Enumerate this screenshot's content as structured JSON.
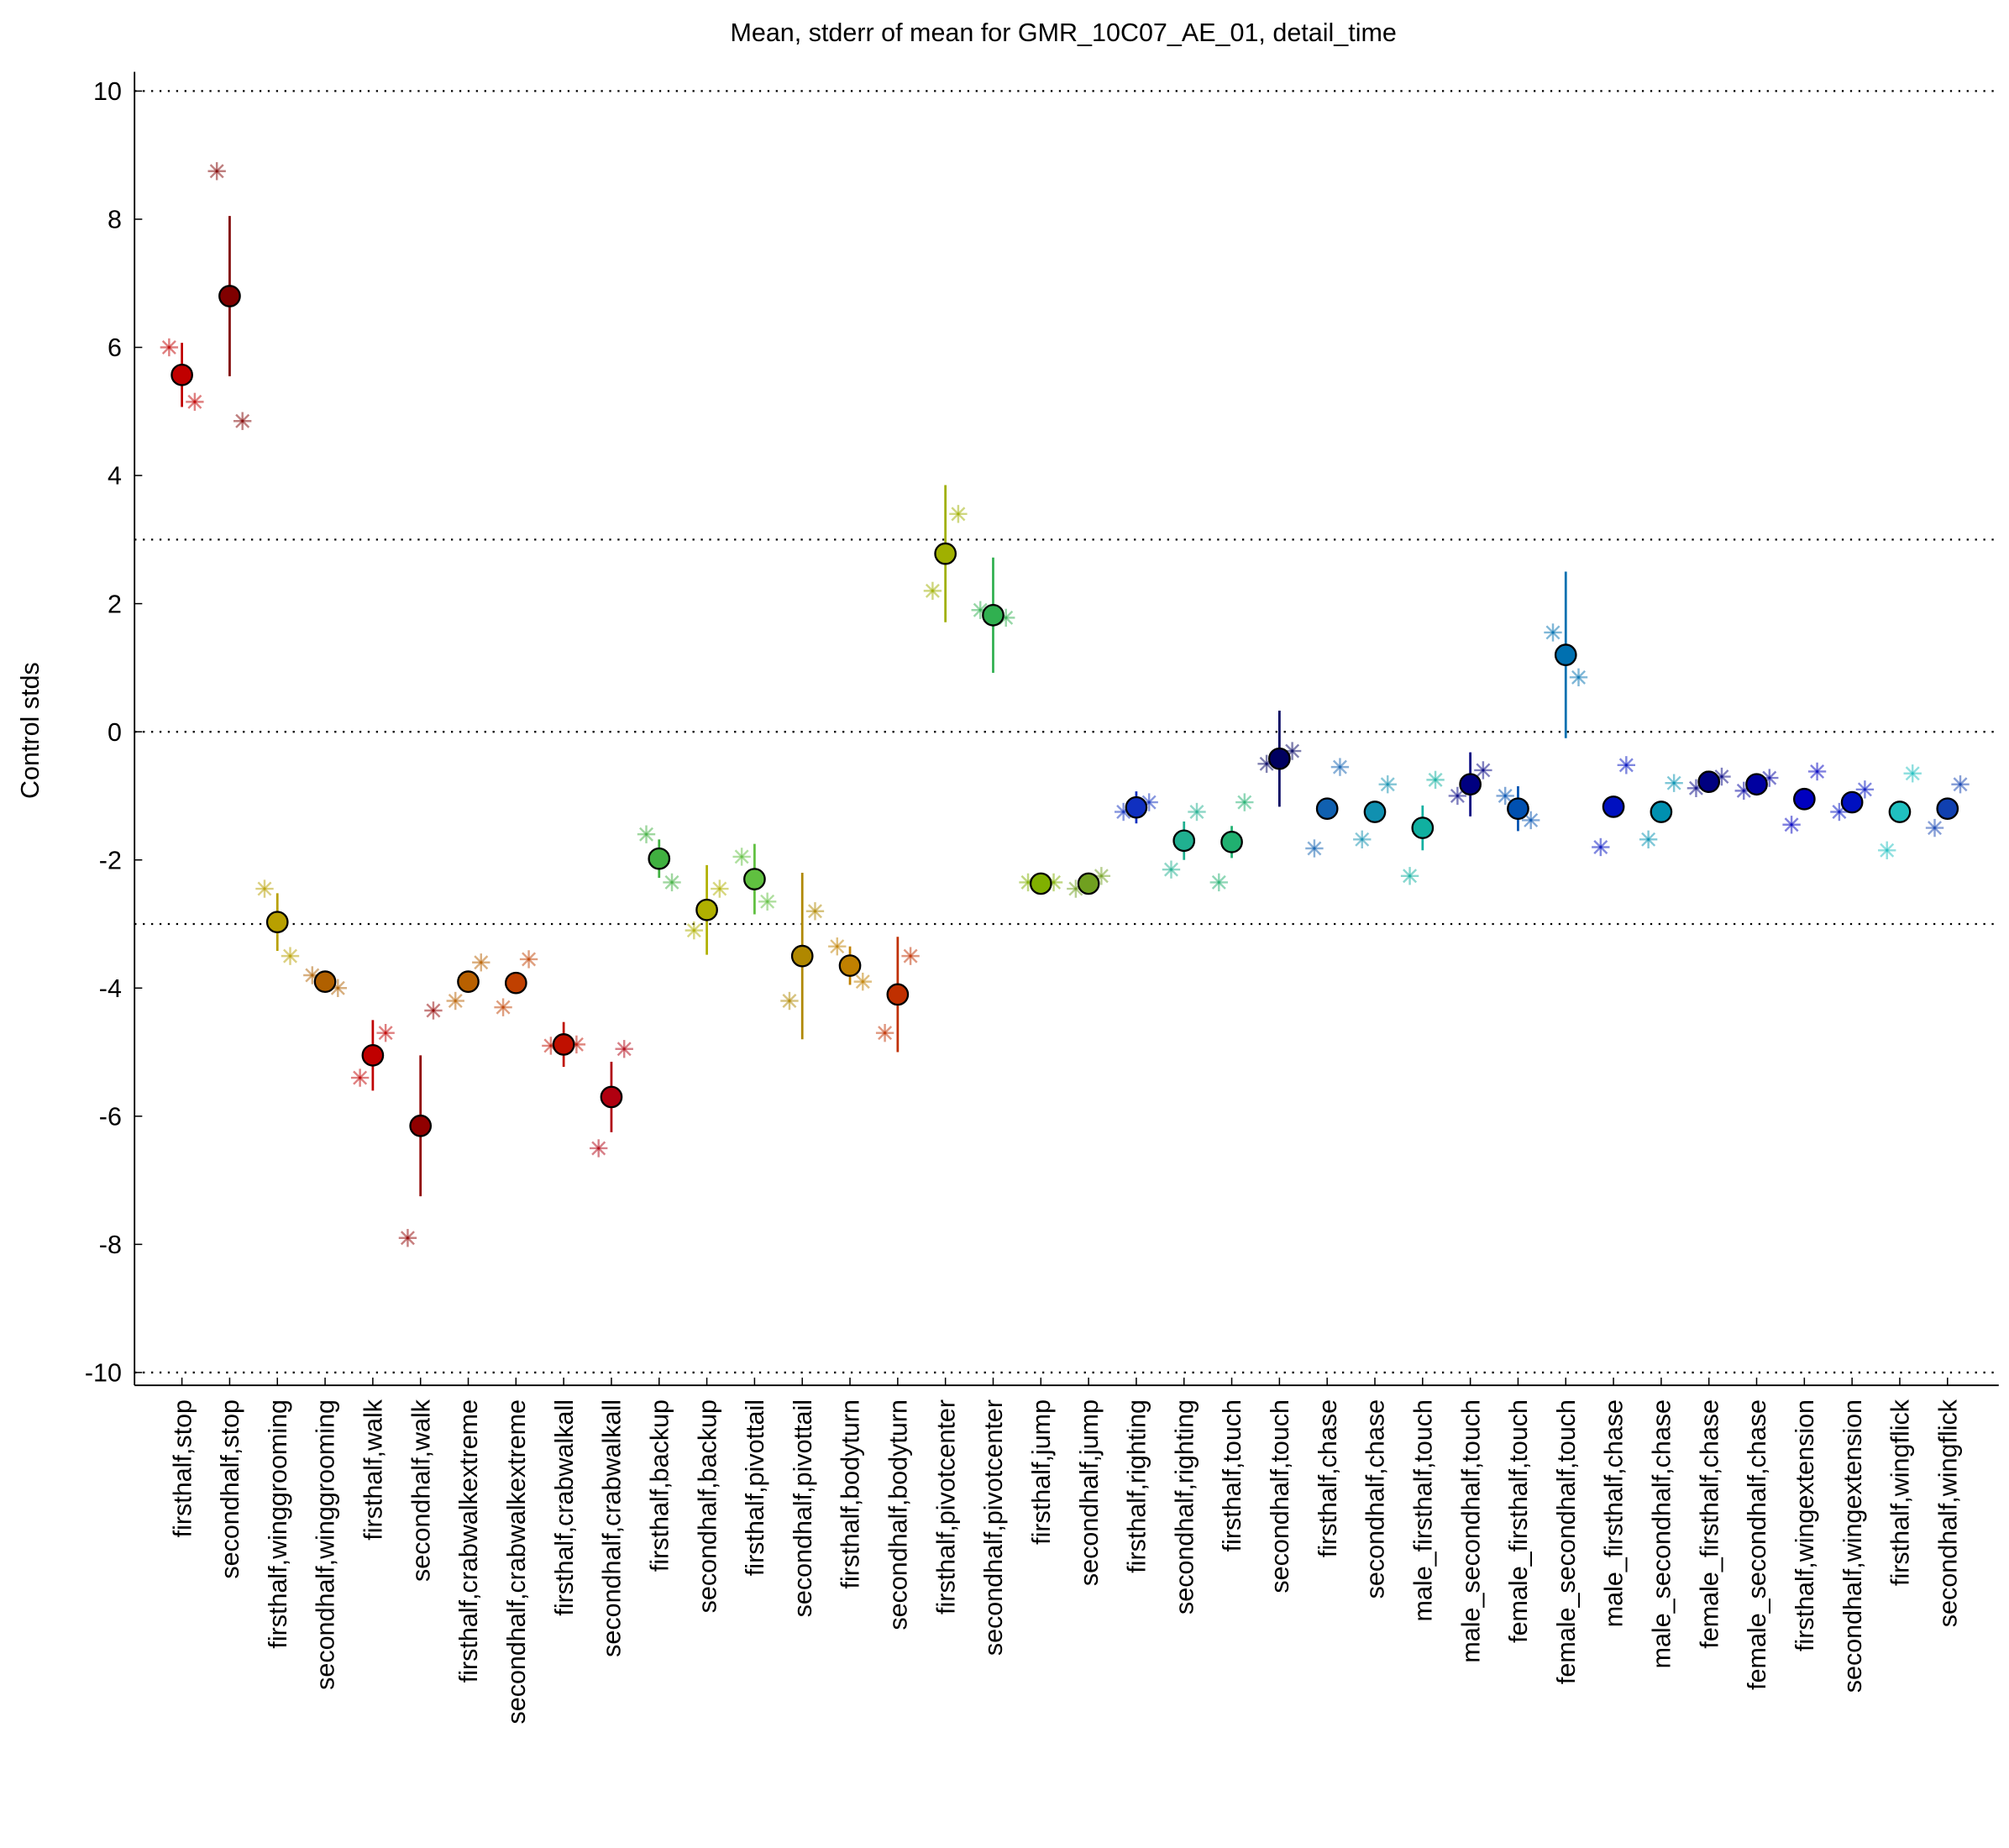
{
  "chart_data": {
    "type": "errorbar",
    "title": "Mean, stderr of mean for GMR_10C07_AE_01, detail_time",
    "ylabel": "Control stds",
    "ylim": [
      -10.2,
      10.3
    ],
    "yticks": [
      -10,
      -8,
      -6,
      -4,
      -2,
      0,
      2,
      4,
      6,
      8,
      10
    ],
    "hlines": [
      10,
      3,
      0,
      -3,
      -10
    ],
    "categories": [
      "firsthalf,stop",
      "secondhalf,stop",
      "firsthalf,winggrooming",
      "secondhalf,winggrooming",
      "firsthalf,walk",
      "secondhalf,walk",
      "firsthalf,crabwalkextreme",
      "secondhalf,crabwalkextreme",
      "firsthalf,crabwalkall",
      "secondhalf,crabwalkall",
      "firsthalf,backup",
      "secondhalf,backup",
      "firsthalf,pivottail",
      "secondhalf,pivottail",
      "firsthalf,bodyturn",
      "secondhalf,bodyturn",
      "firsthalf,pivotcenter",
      "secondhalf,pivotcenter",
      "firsthalf,jump",
      "secondhalf,jump",
      "firsthalf,righting",
      "secondhalf,righting",
      "firsthalf,touch",
      "secondhalf,touch",
      "firsthalf,chase",
      "secondhalf,chase",
      "male_firsthalf,touch",
      "male_secondhalf,touch",
      "female_firsthalf,touch",
      "female_secondhalf,touch",
      "male_firsthalf,chase",
      "male_secondhalf,chase",
      "female_firsthalf,chase",
      "female_secondhalf,chase",
      "firsthalf,wingextension",
      "secondhalf,wingextension",
      "firsthalf,wingflick",
      "secondhalf,wingflick"
    ],
    "colors": [
      "#c00000",
      "#800000",
      "#b8a000",
      "#b06000",
      "#c00000",
      "#900000",
      "#b86000",
      "#c04000",
      "#c01000",
      "#b00010",
      "#40b040",
      "#b0b000",
      "#60c040",
      "#b08800",
      "#c08000",
      "#c03000",
      "#a0b000",
      "#30b050",
      "#80b000",
      "#70a020",
      "#1030c0",
      "#20b090",
      "#20b070",
      "#000060",
      "#1060b0",
      "#1090b0",
      "#10b0a0",
      "#000080",
      "#0050b0",
      "#0070b0",
      "#0010c0",
      "#0090b0",
      "#000080",
      "#0000a0",
      "#0000c0",
      "#0010c0",
      "#20c0c0",
      "#1040b0"
    ],
    "means": [
      5.57,
      6.8,
      -2.97,
      -3.9,
      -5.05,
      -6.15,
      -3.9,
      -3.92,
      -4.88,
      -5.7,
      -1.98,
      -2.78,
      -2.3,
      -3.5,
      -3.65,
      -4.1,
      2.78,
      1.82,
      -2.37,
      -2.37,
      -1.18,
      -1.7,
      -1.72,
      -0.42,
      -1.2,
      -1.25,
      -1.5,
      -0.82,
      -1.2,
      1.2,
      -1.17,
      -1.25,
      -0.78,
      -0.82,
      -1.05,
      -1.1,
      -1.25,
      -1.2
    ],
    "errors": [
      0.5,
      1.25,
      0.45,
      0.1,
      0.55,
      1.1,
      0.1,
      0.15,
      0.35,
      0.55,
      0.3,
      0.7,
      0.55,
      1.3,
      0.3,
      0.9,
      1.07,
      0.9,
      0.1,
      0.1,
      0.25,
      0.3,
      0.25,
      0.75,
      0.05,
      0.05,
      0.35,
      0.5,
      0.35,
      1.3,
      0.05,
      0.05,
      0.05,
      0.05,
      0.05,
      0.05,
      0.05,
      0.05
    ],
    "points": [
      [
        6.0,
        5.15
      ],
      [
        8.75,
        4.85
      ],
      [
        -2.45,
        -3.5
      ],
      [
        -3.8,
        -4.0
      ],
      [
        -5.4,
        -4.7
      ],
      [
        -7.9,
        -4.35
      ],
      [
        -4.2,
        -3.6
      ],
      [
        -4.3,
        -3.55
      ],
      [
        -4.9,
        -4.88
      ],
      [
        -6.5,
        -4.95
      ],
      [
        -1.6,
        -2.35
      ],
      [
        -3.1,
        -2.45
      ],
      [
        -1.95,
        -2.65
      ],
      [
        -4.2,
        -2.8
      ],
      [
        -3.35,
        -3.9
      ],
      [
        -4.7,
        -3.5
      ],
      [
        2.2,
        3.4
      ],
      [
        1.9,
        1.78
      ],
      [
        -2.35,
        -2.35
      ],
      [
        -2.45,
        -2.25
      ],
      [
        -1.25,
        -1.1
      ],
      [
        -2.15,
        -1.25
      ],
      [
        -2.35,
        -1.1
      ],
      [
        -0.5,
        -0.3
      ],
      [
        -1.82,
        -0.55
      ],
      [
        -1.68,
        -0.82
      ],
      [
        -2.25,
        -0.75
      ],
      [
        -1.0,
        -0.6
      ],
      [
        -1.0,
        -1.38
      ],
      [
        1.55,
        0.85
      ],
      [
        -1.8,
        -0.52
      ],
      [
        -1.68,
        -0.8
      ],
      [
        -0.88,
        -0.7
      ],
      [
        -0.92,
        -0.72
      ],
      [
        -1.45,
        -0.62
      ],
      [
        -1.25,
        -0.9
      ],
      [
        -1.85,
        -0.65
      ],
      [
        -1.5,
        -0.82
      ]
    ]
  }
}
